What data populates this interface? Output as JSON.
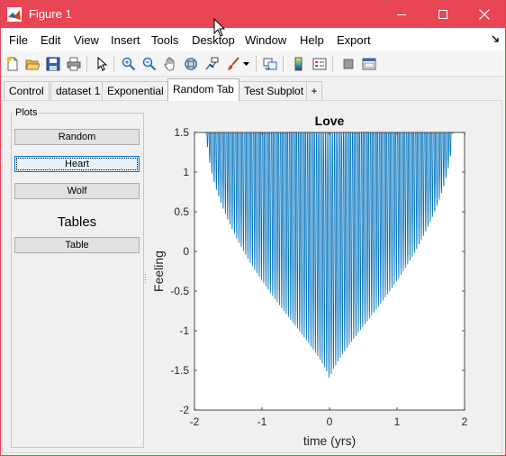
{
  "window": {
    "title": "Figure 1",
    "accent": "#e94555"
  },
  "menu": [
    "File",
    "Edit",
    "View",
    "Insert",
    "Tools",
    "Desktop",
    "Window",
    "Help",
    "Export"
  ],
  "toolbar": {
    "icons": [
      "new-figure-icon",
      "open-file-icon",
      "save-icon",
      "print-icon",
      "pointer-icon",
      "zoom-in-icon",
      "zoom-out-icon",
      "pan-icon",
      "rotate-3d-icon",
      "data-cursor-icon",
      "brush-icon",
      "link-plot-icon",
      "colorbar-icon",
      "legend-icon",
      "hide-plot-tools-icon",
      "show-plot-tools-icon"
    ]
  },
  "tabs": {
    "items": [
      "Control",
      "dataset 1",
      "Exponential",
      "Random Tab",
      "Test Subplot"
    ],
    "active_index": 3,
    "add_label": "+"
  },
  "panel": {
    "title": "Plots",
    "buttons": {
      "random": "Random",
      "heart": "Heart",
      "wolf": "Wolf",
      "table": "Table"
    },
    "tables_label": "Tables"
  },
  "chart_data": {
    "type": "line",
    "title": "Love",
    "xlabel": "time (yrs)",
    "ylabel": "Feeling",
    "xlim": [
      -2,
      2
    ],
    "ylim": [
      -2,
      1.5
    ],
    "xticks": [
      "-2",
      "-1",
      "0",
      "1",
      "2"
    ],
    "yticks": [
      "1.5",
      "1",
      "0.5",
      "0",
      "-0.5",
      "-1",
      "-1.5",
      "-2"
    ],
    "series": [
      {
        "function": "y = |x|^(2/3) + 0.9*sqrt(3.3 - x^2)*sin(a*pi*x)",
        "color": "#0072bd",
        "x_range": [
          -2,
          2
        ]
      }
    ],
    "grid": false,
    "box": true
  }
}
